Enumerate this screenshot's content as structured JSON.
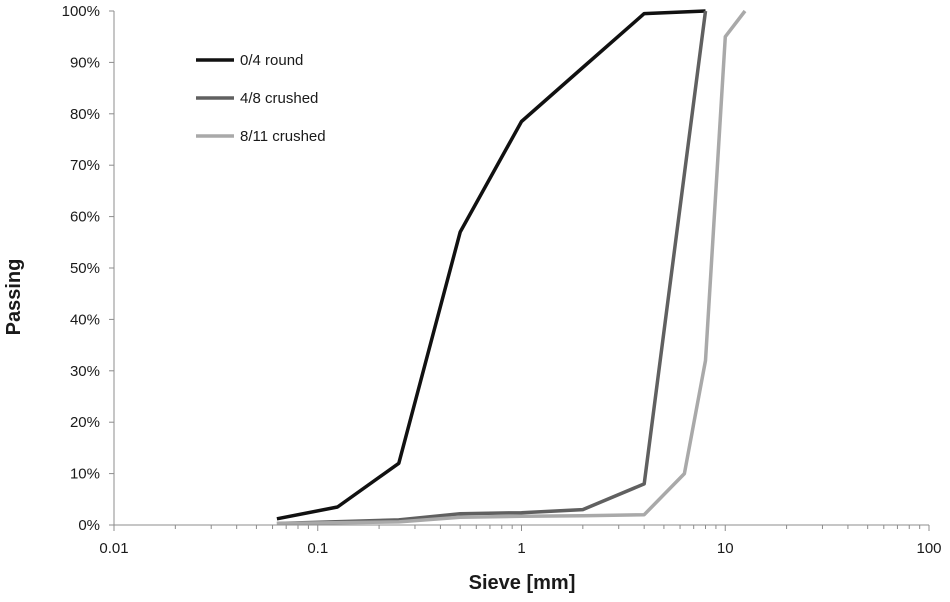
{
  "chart_data": {
    "type": "line",
    "xlabel": "Sieve [mm]",
    "ylabel": "Passing",
    "x_scale": "log",
    "xlim": [
      0.01,
      100
    ],
    "ylim": [
      0,
      1
    ],
    "x_ticks": [
      {
        "value": 0.01,
        "label": "0.01"
      },
      {
        "value": 0.1,
        "label": "0.1"
      },
      {
        "value": 1,
        "label": "1"
      },
      {
        "value": 10,
        "label": "10"
      },
      {
        "value": 100,
        "label": "100"
      }
    ],
    "y_ticks": [
      {
        "value": 0,
        "label": "0%"
      },
      {
        "value": 0.1,
        "label": "10%"
      },
      {
        "value": 0.2,
        "label": "20%"
      },
      {
        "value": 0.3,
        "label": "30%"
      },
      {
        "value": 0.4,
        "label": "40%"
      },
      {
        "value": 0.5,
        "label": "50%"
      },
      {
        "value": 0.6,
        "label": "60%"
      },
      {
        "value": 0.7,
        "label": "70%"
      },
      {
        "value": 0.8,
        "label": "80%"
      },
      {
        "value": 0.9,
        "label": "90%"
      },
      {
        "value": 1.0,
        "label": "100%"
      }
    ],
    "grid": false,
    "legend_position": "top-left",
    "series": [
      {
        "name": "0/4 round",
        "color": "#111111",
        "points": [
          [
            0.063,
            0.012
          ],
          [
            0.125,
            0.035
          ],
          [
            0.25,
            0.12
          ],
          [
            0.5,
            0.57
          ],
          [
            1,
            0.785
          ],
          [
            2,
            0.89
          ],
          [
            4,
            0.995
          ],
          [
            8,
            1.0
          ]
        ]
      },
      {
        "name": "4/8 crushed",
        "color": "#606060",
        "points": [
          [
            0.063,
            0.003
          ],
          [
            0.25,
            0.01
          ],
          [
            0.5,
            0.022
          ],
          [
            1,
            0.024
          ],
          [
            2,
            0.03
          ],
          [
            4,
            0.08
          ],
          [
            8,
            1.0
          ]
        ]
      },
      {
        "name": "8/11 crushed",
        "color": "#a9a9a9",
        "points": [
          [
            0.063,
            0.003
          ],
          [
            0.25,
            0.006
          ],
          [
            0.5,
            0.015
          ],
          [
            1,
            0.017
          ],
          [
            2,
            0.018
          ],
          [
            4,
            0.02
          ],
          [
            6.3,
            0.1
          ],
          [
            8,
            0.32
          ],
          [
            10,
            0.95
          ],
          [
            12.5,
            1.0
          ]
        ]
      }
    ]
  }
}
